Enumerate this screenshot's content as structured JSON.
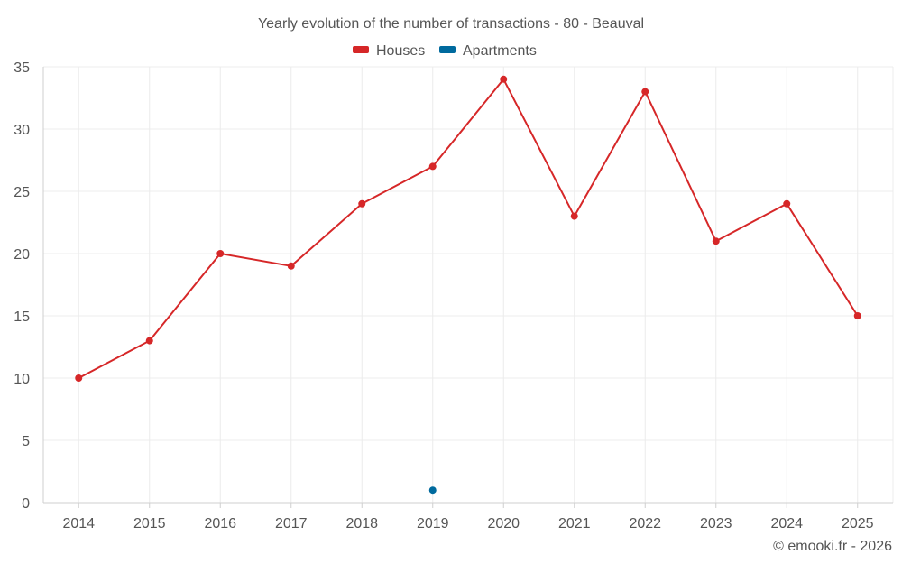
{
  "chart_data": {
    "type": "line",
    "title": "Yearly evolution of the number of transactions - 80 - Beauval",
    "xlabel": "",
    "ylabel": "",
    "categories": [
      "2014",
      "2015",
      "2016",
      "2017",
      "2018",
      "2019",
      "2020",
      "2021",
      "2022",
      "2023",
      "2024",
      "2025"
    ],
    "y_ticks": [
      "0",
      "5",
      "10",
      "15",
      "20",
      "25",
      "30",
      "35"
    ],
    "ylim": [
      0,
      35
    ],
    "grid": true,
    "legend_position": "top-center",
    "series": [
      {
        "name": "Houses",
        "color": "#d62728",
        "values": [
          10,
          13,
          20,
          19,
          24,
          27,
          34,
          23,
          33,
          21,
          24,
          15
        ]
      },
      {
        "name": "Apartments",
        "color": "#006a9e",
        "values": [
          null,
          null,
          null,
          null,
          null,
          1,
          null,
          null,
          null,
          null,
          null,
          null
        ]
      }
    ]
  },
  "credit": "© emooki.fr - 2026"
}
